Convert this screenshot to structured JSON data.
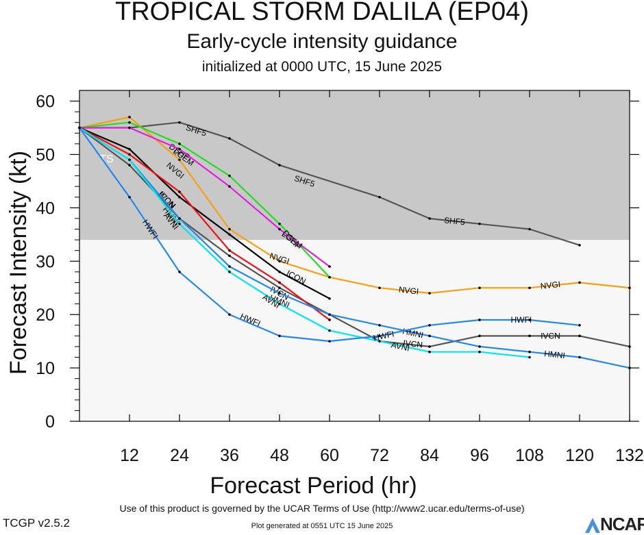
{
  "header": {
    "title": "TROPICAL STORM DALILA (EP04)",
    "subtitle": "Early-cycle intensity guidance",
    "init": "initialized at 0000 UTC, 15 June 2025"
  },
  "footer": {
    "terms": "Use of this product is governed by the UCAR Terms of Use (http://www2.ucar.edu/terms-of-use)",
    "generated": "Plot generated at 0551 UTC   15 June 2025",
    "version": "TCGP v2.5.2",
    "logo": "NCAR"
  },
  "chart_data": {
    "type": "line",
    "xlabel": "Forecast Period (hr)",
    "ylabel": "Forecast Intensity (kt)",
    "xlim": [
      0,
      132
    ],
    "ylim": [
      0,
      62
    ],
    "xticks": [
      12,
      24,
      36,
      48,
      60,
      72,
      84,
      96,
      108,
      120,
      132
    ],
    "yticks": [
      0,
      10,
      20,
      30,
      40,
      50,
      60
    ],
    "ts_band": {
      "label": "TS",
      "from": 34,
      "to": 62,
      "color": "#c8c8c8"
    },
    "background_color": "#f7f7f7",
    "series": [
      {
        "name": "SHF5",
        "color": "#555555",
        "x": [
          0,
          12,
          24,
          36,
          48,
          72,
          84,
          96,
          108,
          120
        ],
        "y": [
          55,
          55,
          56,
          53,
          48,
          42,
          38,
          37,
          36,
          33
        ],
        "labels": [
          {
            "x": 28,
            "y": 54.5
          },
          {
            "x": 54,
            "y": 45
          },
          {
            "x": 90,
            "y": 37.5
          }
        ]
      },
      {
        "name": "NVGI",
        "color": "#f5a010",
        "x": [
          0,
          12,
          24,
          36,
          48,
          60,
          72,
          84,
          96,
          108,
          120,
          132
        ],
        "y": [
          55,
          57,
          49,
          36,
          30,
          27,
          25,
          24,
          25,
          25,
          26,
          25
        ],
        "labels": [
          {
            "x": 23,
            "y": 47
          },
          {
            "x": 48,
            "y": 30.5
          },
          {
            "x": 79,
            "y": 24.5
          },
          {
            "x": 113,
            "y": 25.5
          }
        ]
      },
      {
        "name": "DSHP",
        "color": "#22dd22",
        "x": [
          0,
          12,
          24,
          36,
          48,
          60
        ],
        "y": [
          55,
          56,
          52,
          46,
          37,
          27
        ],
        "labels": [
          {
            "x": 24,
            "y": 50.5
          },
          {
            "x": 51,
            "y": 34
          }
        ]
      },
      {
        "name": "LGEM",
        "color": "#e020e0",
        "x": [
          0,
          12,
          24,
          36,
          48,
          60
        ],
        "y": [
          55,
          55,
          51,
          44,
          36,
          29
        ],
        "labels": [
          {
            "x": 25,
            "y": 49.5
          },
          {
            "x": 51,
            "y": 34
          }
        ]
      },
      {
        "name": "ICON",
        "color": "#000000",
        "x": [
          0,
          12,
          24,
          36,
          48,
          60
        ],
        "y": [
          55,
          51,
          42,
          35,
          28,
          23
        ],
        "labels": [
          {
            "x": 21,
            "y": 41.5
          },
          {
            "x": 52,
            "y": 27
          }
        ]
      },
      {
        "name": "IVCN",
        "color": "#555555",
        "x": [
          0,
          12,
          24,
          36,
          48,
          60,
          72,
          84,
          96,
          108,
          120,
          132
        ],
        "y": [
          55,
          48,
          38,
          31,
          25,
          20,
          15,
          14,
          16,
          16,
          16,
          14
        ],
        "labels": [
          {
            "x": 21,
            "y": 41.5
          },
          {
            "x": 48,
            "y": 24
          },
          {
            "x": 80,
            "y": 14.5
          },
          {
            "x": 113,
            "y": 16
          }
        ]
      },
      {
        "name": "CTCI",
        "color": "#ee1111",
        "x": [
          0,
          12,
          24,
          36,
          48,
          60
        ],
        "y": [
          55,
          50,
          43,
          32,
          26,
          19
        ]
      },
      {
        "name": "HMNI",
        "color": "#2288ee",
        "x": [
          0,
          12,
          24,
          36,
          48,
          60,
          72,
          84,
          96,
          108,
          120,
          132
        ],
        "y": [
          55,
          49,
          38,
          29,
          24,
          20,
          18,
          16,
          14,
          13,
          12,
          10
        ],
        "labels": [
          {
            "x": 22,
            "y": 38.5
          },
          {
            "x": 48,
            "y": 22.5
          },
          {
            "x": 80,
            "y": 16.5
          },
          {
            "x": 114,
            "y": 12.5
          }
        ]
      },
      {
        "name": "AVNI",
        "color": "#00e5ee",
        "x": [
          0,
          12,
          24,
          36,
          48,
          60,
          72,
          84,
          96,
          108
        ],
        "y": [
          55,
          49,
          37,
          28,
          22,
          17,
          15,
          13,
          13,
          12
        ],
        "labels": [
          {
            "x": 22,
            "y": 37.5
          },
          {
            "x": 46,
            "y": 22.5
          },
          {
            "x": 77,
            "y": 14
          }
        ]
      },
      {
        "name": "HWFI",
        "color": "#2288ee",
        "x": [
          0,
          12,
          24,
          36,
          48,
          60,
          72,
          84,
          96,
          108,
          120
        ],
        "y": [
          55,
          42,
          28,
          20,
          16,
          15,
          16,
          18,
          19,
          19,
          18
        ],
        "labels": [
          {
            "x": 17,
            "y": 36
          },
          {
            "x": 41,
            "y": 19
          },
          {
            "x": 73,
            "y": 16
          },
          {
            "x": 106,
            "y": 19
          }
        ]
      }
    ]
  }
}
